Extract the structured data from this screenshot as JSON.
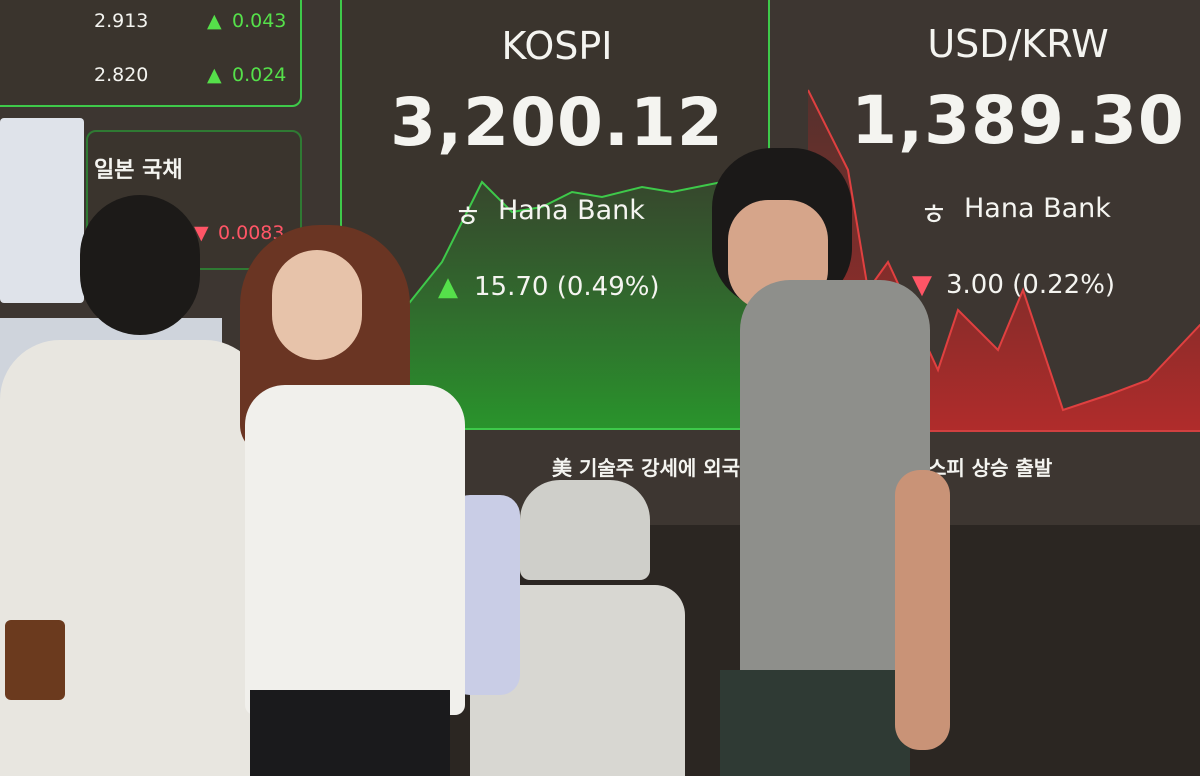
{
  "bond_panel": {
    "rows": [
      {
        "value": "2.913",
        "change": "0.043",
        "direction": "up"
      },
      {
        "value": "2.820",
        "change": "0.024",
        "direction": "up"
      }
    ]
  },
  "japan_panel": {
    "label": "일본 국채",
    "change": "0.0083",
    "direction": "down"
  },
  "kospi": {
    "title": "KOSPI",
    "value": "3,200.12",
    "sponsor": "Hana Bank",
    "change": "15.70 (0.49%)",
    "direction": "up"
  },
  "usdkrw": {
    "title": "USD/KRW",
    "value": "1,389.30",
    "sponsor": "Hana Bank",
    "change": "3.00 (0.22%)",
    "direction": "down"
  },
  "ticker": {
    "left": "美 기술주 강세에 외국",
    "right": "스피 상승 출발"
  },
  "colors": {
    "up": "#55e04a",
    "down": "#ff5566",
    "wall": "#3d3631",
    "panel_border": "#3ec94a"
  }
}
